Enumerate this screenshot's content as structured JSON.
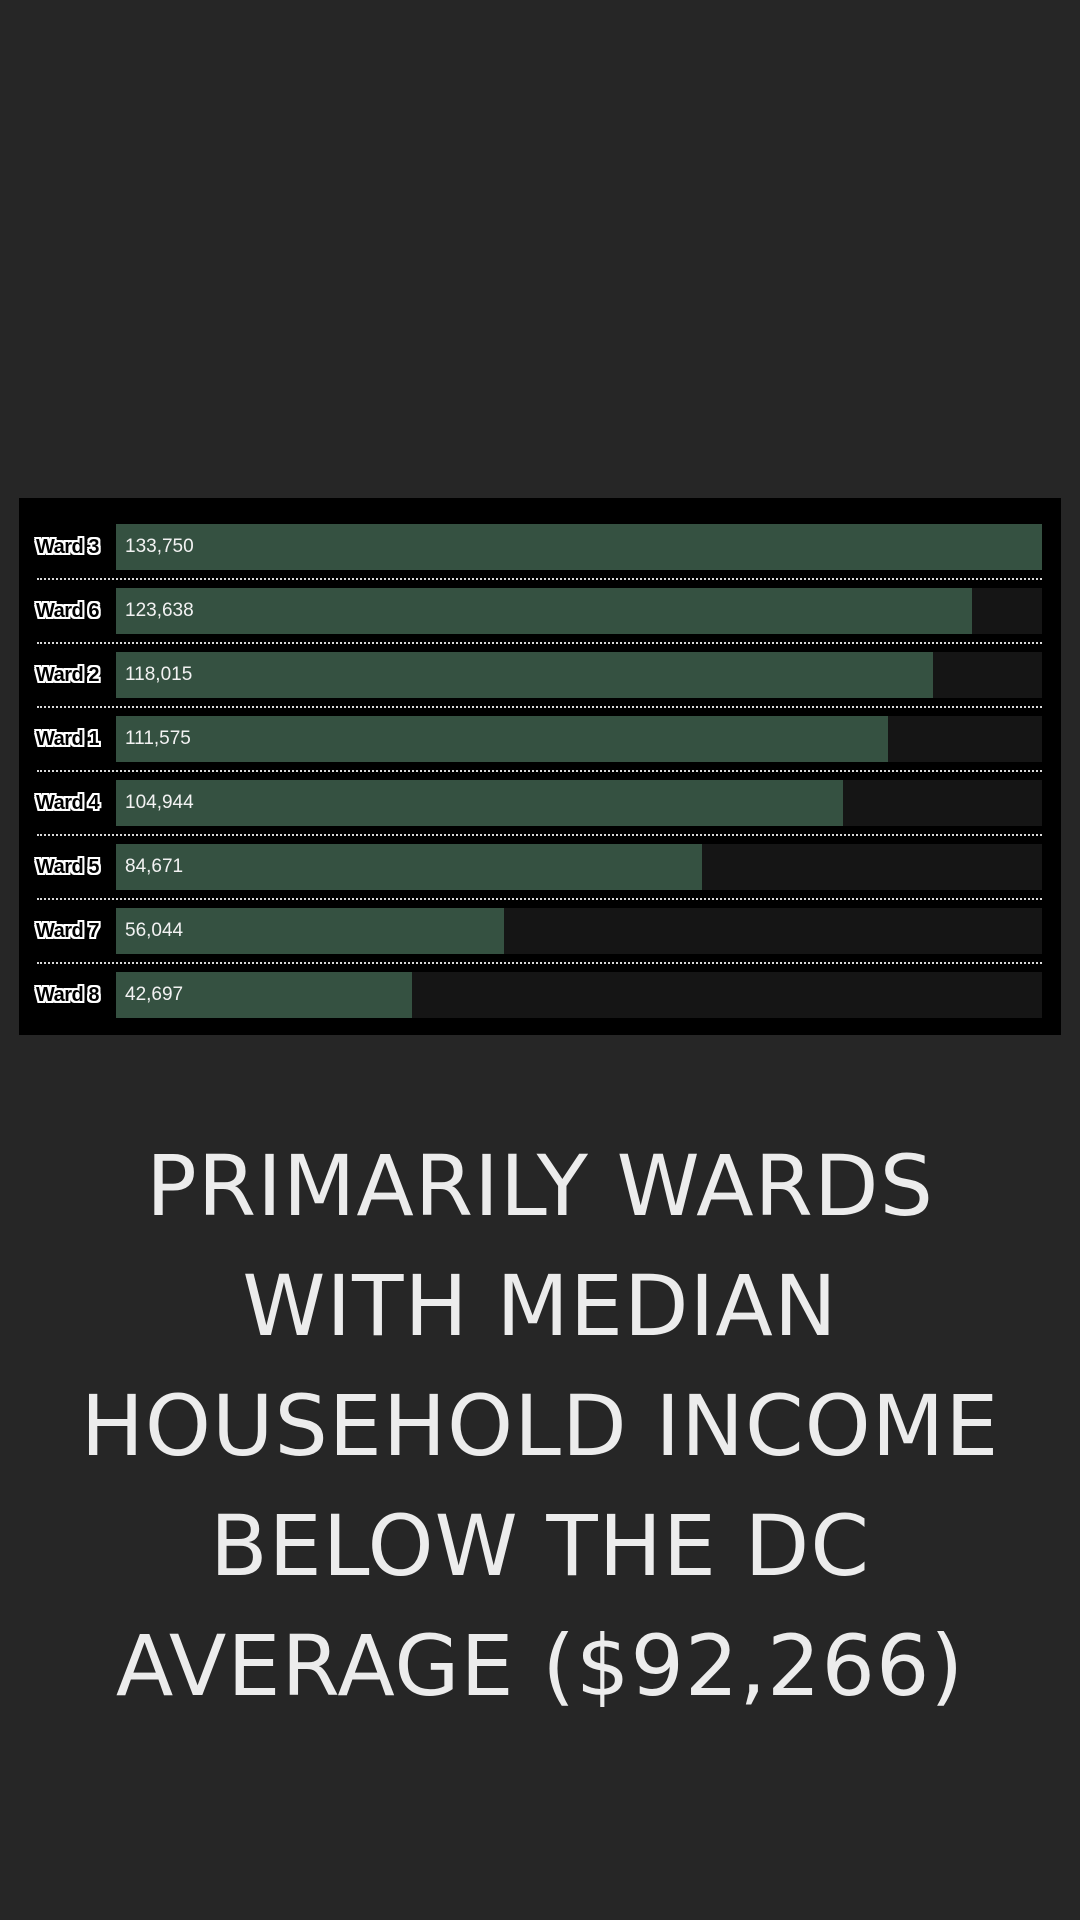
{
  "colors": {
    "background": "#262626",
    "panel": "#000000",
    "bar": "#355141",
    "track": "#151515",
    "headline": "#ececec"
  },
  "chart_data": {
    "type": "bar",
    "orientation": "horizontal",
    "categories": [
      "Ward 3",
      "Ward 6",
      "Ward 2",
      "Ward 1",
      "Ward 4",
      "Ward 5",
      "Ward 7",
      "Ward 8"
    ],
    "values": [
      133750,
      123638,
      118015,
      111575,
      104944,
      84671,
      56044,
      42697
    ],
    "value_labels": [
      "133,750",
      "123,638",
      "118,015",
      "111,575",
      "104,944",
      "84,671",
      "56,044",
      "42,697"
    ],
    "xlim": [
      0,
      133750
    ],
    "grid": false
  },
  "headline": {
    "text": "PRIMARILY WARDS WITH MEDIAN HOUSEHOLD INCOME BELOW THE DC AVERAGE ($92,266)"
  }
}
